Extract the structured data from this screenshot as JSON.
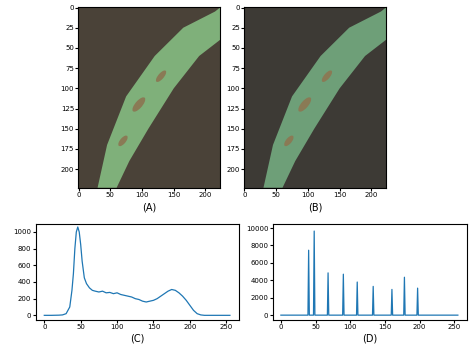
{
  "chart_data": [
    {
      "type": "image",
      "label": "(A)",
      "xlim": [
        -0.5,
        223.5
      ],
      "ylim": [
        223.5,
        -0.5
      ],
      "xticks": [
        0,
        50,
        100,
        150,
        200
      ],
      "yticks": [
        0,
        25,
        50,
        75,
        100,
        125,
        150,
        175,
        200
      ]
    },
    {
      "type": "image",
      "label": "(B)",
      "xlim": [
        -0.5,
        223.5
      ],
      "ylim": [
        223.5,
        -0.5
      ],
      "xticks": [
        0,
        50,
        100,
        150,
        200
      ],
      "yticks": [
        0,
        25,
        50,
        75,
        100,
        125,
        150,
        175,
        200
      ]
    },
    {
      "type": "line",
      "label": "(C)",
      "color": "#1f77b4",
      "x": [
        0,
        10,
        20,
        25,
        30,
        35,
        38,
        40,
        42,
        44,
        46,
        48,
        50,
        52,
        55,
        58,
        62,
        66,
        70,
        75,
        80,
        85,
        90,
        95,
        100,
        105,
        110,
        115,
        120,
        125,
        130,
        135,
        140,
        145,
        150,
        155,
        160,
        165,
        170,
        175,
        180,
        185,
        190,
        195,
        200,
        205,
        210,
        215,
        220,
        230,
        240,
        255
      ],
      "values": [
        0,
        0,
        2,
        5,
        20,
        100,
        300,
        500,
        800,
        1000,
        1060,
        1000,
        850,
        650,
        450,
        380,
        330,
        300,
        290,
        280,
        290,
        270,
        275,
        260,
        270,
        250,
        240,
        230,
        220,
        200,
        190,
        170,
        160,
        170,
        180,
        200,
        230,
        260,
        290,
        310,
        300,
        270,
        230,
        180,
        120,
        60,
        20,
        5,
        0,
        0,
        0,
        0
      ],
      "xlim": [
        -12,
        268
      ],
      "ylim": [
        -50,
        1100
      ],
      "xticks": [
        0,
        50,
        100,
        150,
        200,
        250
      ],
      "yticks": [
        0,
        200,
        400,
        600,
        800,
        1000
      ]
    },
    {
      "type": "line",
      "label": "(D)",
      "color": "#1f77b4",
      "x": [
        0,
        39,
        40,
        41,
        47,
        48,
        49,
        67,
        68,
        69,
        89,
        90,
        91,
        109,
        110,
        111,
        132,
        133,
        134,
        159,
        160,
        161,
        177,
        178,
        179,
        196,
        197,
        198,
        255
      ],
      "values": [
        0,
        0,
        7450,
        0,
        0,
        9650,
        0,
        0,
        4850,
        0,
        0,
        4700,
        0,
        0,
        3800,
        0,
        0,
        3300,
        0,
        0,
        2950,
        0,
        0,
        4350,
        0,
        0,
        3100,
        0,
        0
      ],
      "xlim": [
        -12,
        268
      ],
      "ylim": [
        -500,
        10500
      ],
      "xticks": [
        0,
        50,
        100,
        150,
        200,
        250
      ],
      "yticks": [
        0,
        2000,
        4000,
        6000,
        8000,
        10000
      ]
    }
  ]
}
